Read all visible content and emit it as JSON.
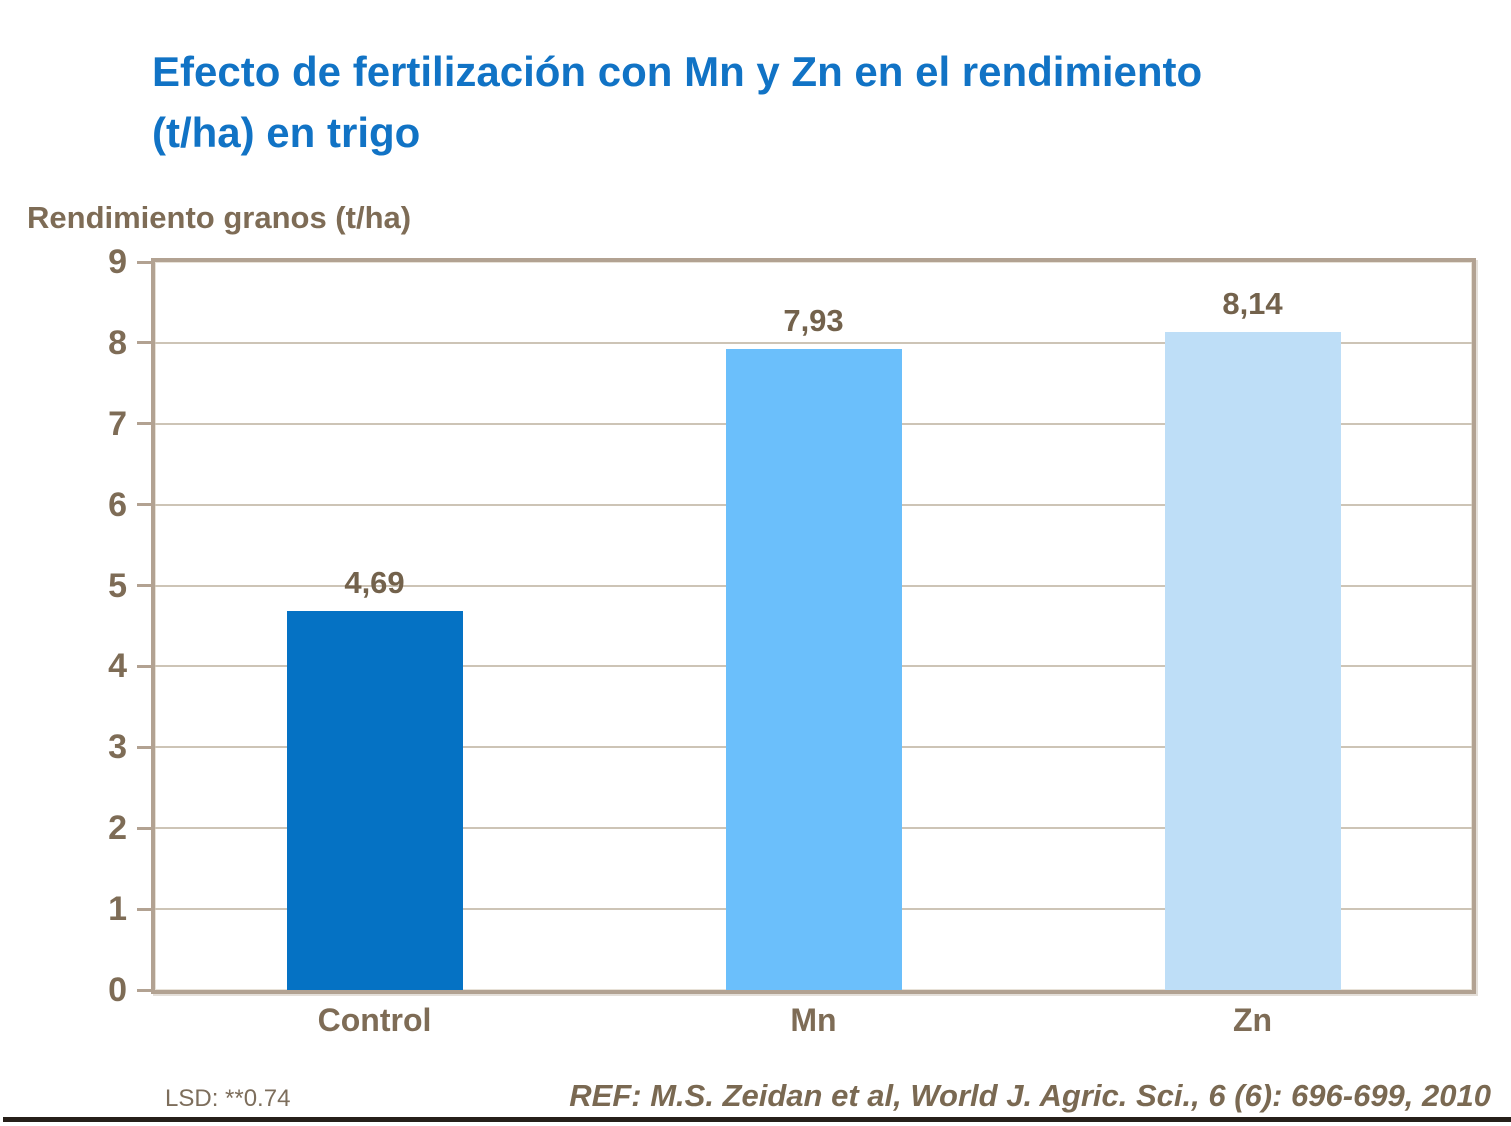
{
  "header": {
    "title_line1": "Efecto de fertilización con Mn y Zn en el rendimiento",
    "title_line2": "(t/ha) en trigo"
  },
  "chart_data": {
    "type": "bar",
    "title": "Efecto de fertilización con Mn y Zn en el rendimiento (t/ha) en trigo",
    "xlabel": "",
    "ylabel": "Rendimiento granos (t/ha)",
    "categories": [
      "Control",
      "Mn",
      "Zn"
    ],
    "values": [
      4.69,
      7.93,
      8.14
    ],
    "value_labels": [
      "4,69",
      "7,93",
      "8,14"
    ],
    "bar_colors": [
      "#0572C4",
      "#6BBFFB",
      "#BEDEF7"
    ],
    "ylim": [
      0,
      9
    ],
    "yticks": [
      "0",
      "1",
      "2",
      "3",
      "4",
      "5",
      "6",
      "7",
      "8",
      "9"
    ],
    "grid": true,
    "legend": "none"
  },
  "footer": {
    "lsd": "LSD: **0.74",
    "ref": "REF: M.S. Zeidan et al, World J. Agric. Sci., 6 (6): 696-699, 2010"
  },
  "colors": {
    "title_blue": "#1173C5",
    "text_brown": "#7E6C56",
    "value_brown": "#73624C",
    "frame_tan": "#B2A292",
    "gridline": "#CDC4B6",
    "bottom_rule": "#261F19",
    "bar_control": "#0572C4",
    "bar_mn": "#6BBFFB",
    "bar_zn": "#BEDEF7"
  }
}
